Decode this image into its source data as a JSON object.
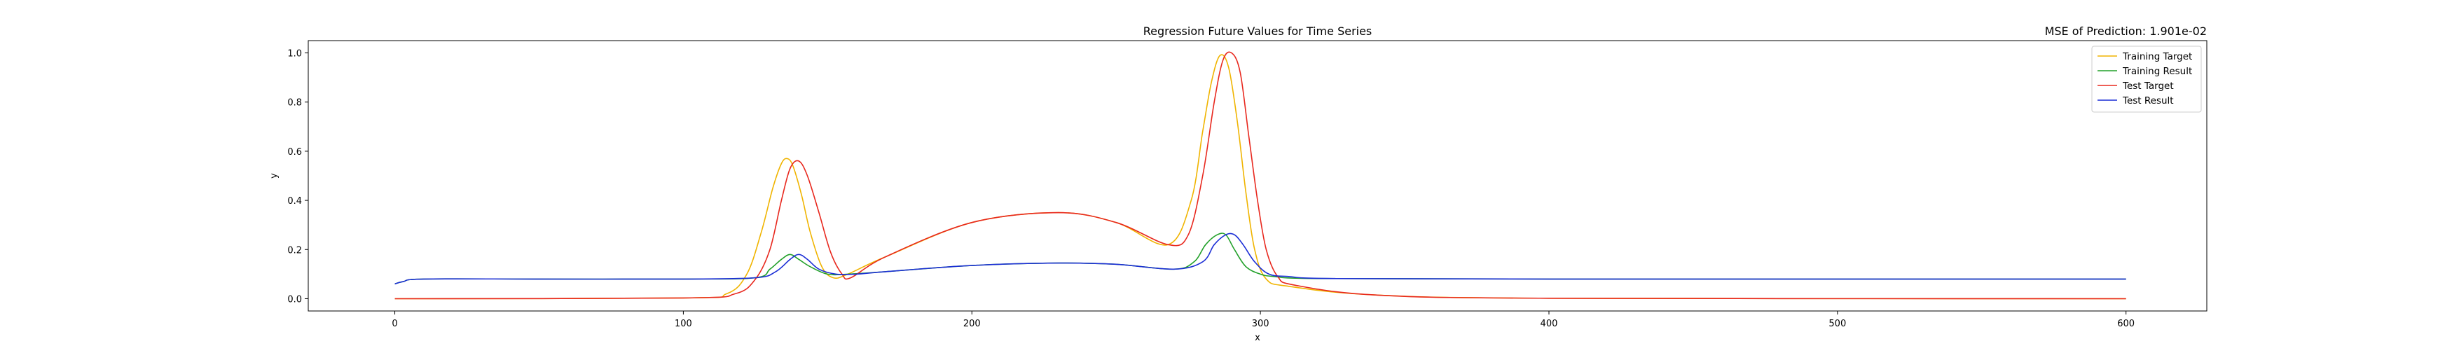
{
  "chart_data": {
    "type": "line",
    "title": "Regression Future Values for Time Series",
    "right_title": "MSE of Prediction: 1.901e-02",
    "xlabel": "x",
    "ylabel": "y",
    "xlim": [
      -30,
      628
    ],
    "ylim": [
      -0.05,
      1.05
    ],
    "xticks": [
      0,
      100,
      200,
      300,
      400,
      500,
      600
    ],
    "xtick_labels": [
      "0",
      "100",
      "200",
      "300",
      "400",
      "500",
      "600"
    ],
    "yticks": [
      0.0,
      0.2,
      0.4,
      0.6,
      0.8,
      1.0
    ],
    "ytick_labels": [
      "0.0",
      "0.2",
      "0.4",
      "0.6",
      "0.8",
      "1.0"
    ],
    "grid": false,
    "legend_position": "top-right",
    "series": [
      {
        "name": "Training Target",
        "color": "#f0b400",
        "x": [
          0,
          100,
          115,
          122,
          127,
          131,
          134,
          136,
          138,
          141,
          144,
          148,
          152,
          157,
          170,
          200,
          230,
          250,
          268,
          276,
          280,
          283,
          286,
          289,
          292,
          295,
          298,
          302,
          310,
          340,
          400,
          600
        ],
        "y": [
          0.0,
          0.003,
          0.02,
          0.1,
          0.27,
          0.45,
          0.55,
          0.57,
          0.54,
          0.42,
          0.27,
          0.13,
          0.085,
          0.1,
          0.17,
          0.31,
          0.35,
          0.31,
          0.22,
          0.4,
          0.68,
          0.88,
          0.99,
          0.94,
          0.72,
          0.43,
          0.2,
          0.08,
          0.05,
          0.015,
          0.002,
          0.0
        ]
      },
      {
        "name": "Training Result",
        "color": "#22a02a",
        "x": [
          0,
          3,
          10,
          50,
          100,
          125,
          130,
          134,
          137,
          140,
          144,
          150,
          157,
          170,
          200,
          230,
          250,
          270,
          277,
          281,
          285,
          288,
          291,
          295,
          300,
          305,
          320,
          400,
          600
        ],
        "y": [
          0.06,
          0.07,
          0.08,
          0.08,
          0.08,
          0.085,
          0.12,
          0.16,
          0.18,
          0.16,
          0.13,
          0.1,
          0.1,
          0.11,
          0.135,
          0.145,
          0.14,
          0.12,
          0.15,
          0.22,
          0.26,
          0.26,
          0.2,
          0.13,
          0.1,
          0.09,
          0.082,
          0.08,
          0.08
        ]
      },
      {
        "name": "Test Target",
        "color": "#e8281e",
        "x": [
          0,
          100,
          118,
          125,
          130,
          134,
          137,
          140,
          143,
          147,
          151,
          155,
          158,
          170,
          200,
          230,
          250,
          268,
          275,
          280,
          284,
          287,
          290,
          293,
          296,
          299,
          302,
          306,
          312,
          340,
          400,
          600
        ],
        "y": [
          0.0,
          0.003,
          0.02,
          0.08,
          0.2,
          0.4,
          0.53,
          0.56,
          0.5,
          0.35,
          0.19,
          0.1,
          0.085,
          0.17,
          0.31,
          0.35,
          0.31,
          0.22,
          0.26,
          0.5,
          0.8,
          0.97,
          1.0,
          0.92,
          0.66,
          0.4,
          0.2,
          0.09,
          0.055,
          0.015,
          0.002,
          0.0
        ]
      },
      {
        "name": "Test Result",
        "color": "#1c2fd6",
        "x": [
          0,
          3,
          10,
          50,
          100,
          125,
          132,
          137,
          140,
          143,
          147,
          153,
          160,
          170,
          200,
          230,
          250,
          270,
          280,
          284,
          288,
          291,
          294,
          298,
          303,
          310,
          325,
          400,
          600
        ],
        "y": [
          0.06,
          0.07,
          0.08,
          0.08,
          0.08,
          0.085,
          0.11,
          0.16,
          0.18,
          0.16,
          0.12,
          0.1,
          0.1,
          0.11,
          0.135,
          0.145,
          0.14,
          0.12,
          0.15,
          0.22,
          0.26,
          0.26,
          0.22,
          0.15,
          0.1,
          0.09,
          0.082,
          0.08,
          0.08
        ]
      }
    ]
  }
}
